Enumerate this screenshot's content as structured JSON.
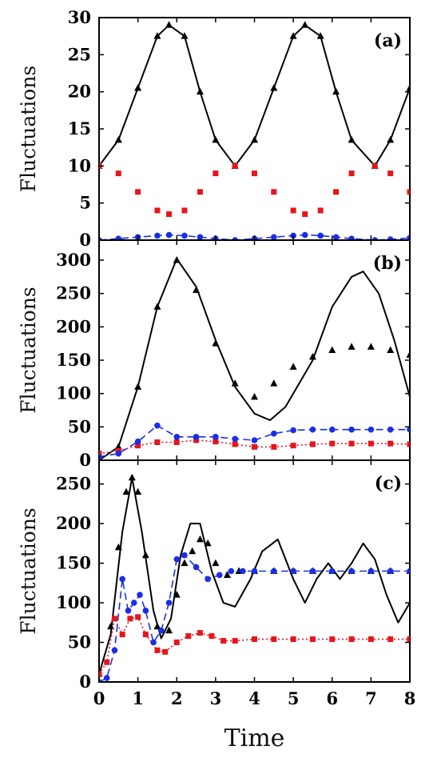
{
  "chart_data": [
    {
      "type": "line",
      "panel_label": "(a)",
      "ylabel": "Fluctuations",
      "xlim": [
        0,
        8
      ],
      "ylim": [
        0,
        30
      ],
      "yticks": [
        0,
        5,
        10,
        15,
        20,
        25,
        30
      ],
      "series": [
        {
          "color": "#000000",
          "style": "solid",
          "marker": "none",
          "x": [
            0,
            0.5,
            1,
            1.5,
            1.8,
            2.2,
            2.6,
            3,
            3.5,
            4,
            4.5,
            5,
            5.3,
            5.7,
            6.1,
            6.5,
            7.1,
            7.5,
            8
          ],
          "y": [
            10,
            13.5,
            20.5,
            27.5,
            29,
            27.5,
            20,
            13.5,
            10,
            13.5,
            20.5,
            27.5,
            29,
            27.5,
            20,
            13.5,
            10,
            13.5,
            20.5
          ]
        },
        {
          "color": "#000000",
          "style": "none",
          "marker": "triangle",
          "x": [
            0,
            0.5,
            1,
            1.5,
            1.8,
            2.2,
            2.6,
            3,
            3.5,
            4,
            4.5,
            5,
            5.3,
            5.7,
            6.1,
            6.5,
            7.1,
            7.5,
            8
          ],
          "y": [
            10,
            13.5,
            20.5,
            27.5,
            29,
            27.5,
            20,
            13.5,
            10,
            13.5,
            20.5,
            27.5,
            29,
            27.5,
            20,
            13.5,
            10,
            13.5,
            20.5
          ]
        },
        {
          "color": "#e8141b",
          "style": "none",
          "marker": "square",
          "x": [
            0,
            0.5,
            1,
            1.5,
            1.8,
            2.2,
            2.6,
            3,
            3.5,
            4,
            4.5,
            5,
            5.3,
            5.7,
            6.1,
            6.5,
            7.1,
            7.5,
            8
          ],
          "y": [
            10,
            9,
            6.5,
            4,
            3.5,
            4,
            6.5,
            9,
            10,
            9,
            6.5,
            4,
            3.5,
            4,
            6.5,
            9,
            10,
            9,
            6.5
          ]
        },
        {
          "color": "#1a2ee6",
          "style": "dashed",
          "marker": "circle",
          "x": [
            0,
            0.5,
            1,
            1.5,
            1.8,
            2.2,
            2.6,
            3,
            3.5,
            4,
            4.5,
            5,
            5.3,
            5.7,
            6.1,
            6.5,
            7.1,
            7.5,
            8
          ],
          "y": [
            0,
            0.2,
            0.4,
            0.6,
            0.7,
            0.6,
            0.4,
            0.2,
            0,
            0.2,
            0.4,
            0.6,
            0.7,
            0.6,
            0.4,
            0.2,
            0,
            0.1,
            0.3
          ]
        }
      ]
    },
    {
      "type": "line",
      "panel_label": "(b)",
      "ylabel": "Fluctuations",
      "xlim": [
        0,
        8
      ],
      "ylim": [
        0,
        330
      ],
      "yticks": [
        0,
        50,
        100,
        150,
        200,
        250,
        300
      ],
      "series": [
        {
          "color": "#000000",
          "style": "solid",
          "marker": "none",
          "x": [
            0,
            0.5,
            1,
            1.5,
            2,
            2.5,
            3,
            3.5,
            4,
            4.4,
            4.8,
            5.5,
            6,
            6.5,
            6.8,
            7.2,
            7.6,
            8
          ],
          "y": [
            0,
            20,
            110,
            230,
            302,
            260,
            180,
            110,
            70,
            60,
            80,
            150,
            230,
            275,
            283,
            250,
            180,
            95
          ]
        },
        {
          "color": "#000000",
          "style": "none",
          "marker": "triangle",
          "x": [
            0,
            0.5,
            1,
            1.5,
            2,
            2.5,
            3,
            3.5,
            4,
            4.5,
            5,
            5.5,
            6,
            6.5,
            7,
            7.5,
            8
          ],
          "y": [
            0,
            20,
            110,
            230,
            300,
            255,
            175,
            115,
            95,
            115,
            140,
            155,
            165,
            170,
            170,
            165,
            158
          ]
        },
        {
          "color": "#e8141b",
          "style": "dotted",
          "marker": "square",
          "x": [
            0,
            0.5,
            1,
            1.5,
            2,
            2.5,
            3,
            3.5,
            4,
            4.5,
            5,
            5.5,
            6,
            6.5,
            7,
            7.5,
            8
          ],
          "y": [
            10,
            14,
            22,
            27,
            27,
            30,
            28,
            24,
            20,
            20,
            22,
            24,
            25,
            25,
            25,
            25,
            24
          ]
        },
        {
          "color": "#1a2ee6",
          "style": "dashed",
          "marker": "circle",
          "x": [
            0,
            0.5,
            1,
            1.5,
            2,
            2.5,
            3,
            3.5,
            4,
            4.5,
            5,
            5.5,
            6,
            6.5,
            7,
            7.5,
            8
          ],
          "y": [
            5,
            10,
            28,
            52,
            35,
            35,
            35,
            32,
            30,
            40,
            45,
            46,
            46,
            46,
            46,
            46,
            46
          ]
        }
      ]
    },
    {
      "type": "line",
      "panel_label": "(c)",
      "xlabel": "Time",
      "ylabel": "Fluctuations",
      "xlim": [
        0,
        8
      ],
      "ylim": [
        0,
        280
      ],
      "yticks": [
        0,
        50,
        100,
        150,
        200,
        250
      ],
      "xticks": [
        0,
        1,
        2,
        3,
        4,
        5,
        6,
        7,
        8
      ],
      "series": [
        {
          "color": "#000000",
          "style": "solid",
          "marker": "none",
          "x": [
            0,
            0.3,
            0.6,
            0.85,
            1.1,
            1.4,
            1.6,
            1.85,
            2.1,
            2.35,
            2.6,
            2.9,
            3.2,
            3.5,
            3.9,
            4.2,
            4.6,
            5,
            5.3,
            5.6,
            5.9,
            6.2,
            6.5,
            6.8,
            7.1,
            7.4,
            7.7,
            8
          ],
          "y": [
            10,
            60,
            190,
            258,
            190,
            90,
            55,
            80,
            160,
            200,
            200,
            140,
            100,
            95,
            130,
            165,
            180,
            130,
            100,
            130,
            150,
            130,
            150,
            175,
            155,
            110,
            75,
            100
          ]
        },
        {
          "color": "#000000",
          "style": "none",
          "marker": "triangle",
          "x": [
            0,
            0.3,
            0.5,
            0.7,
            0.85,
            1,
            1.2,
            1.5,
            1.8,
            2,
            2.2,
            2.4,
            2.6,
            2.8,
            3,
            3.3,
            3.6,
            4,
            4.5,
            5,
            5.5,
            6,
            6.5,
            7,
            7.5,
            8
          ],
          "y": [
            10,
            70,
            170,
            240,
            258,
            240,
            160,
            70,
            65,
            110,
            150,
            165,
            180,
            175,
            150,
            135,
            140,
            140,
            140,
            140,
            140,
            140,
            140,
            140,
            140,
            140
          ]
        },
        {
          "color": "#e8141b",
          "style": "dotted",
          "marker": "square",
          "x": [
            0,
            0.2,
            0.4,
            0.6,
            0.8,
            1,
            1.2,
            1.5,
            1.7,
            2,
            2.3,
            2.6,
            2.9,
            3.2,
            3.5,
            4,
            4.5,
            5,
            5.5,
            6,
            6.5,
            7,
            7.5,
            8
          ],
          "y": [
            10,
            25,
            80,
            60,
            80,
            82,
            60,
            40,
            38,
            50,
            58,
            62,
            58,
            52,
            52,
            54,
            54,
            54,
            54,
            54,
            54,
            54,
            54,
            54
          ]
        },
        {
          "color": "#1a2ee6",
          "style": "dashed",
          "marker": "circle",
          "x": [
            0,
            0.2,
            0.4,
            0.6,
            0.75,
            0.9,
            1.05,
            1.2,
            1.4,
            1.6,
            1.8,
            2,
            2.2,
            2.5,
            2.8,
            3.1,
            3.4,
            3.7,
            4,
            4.5,
            5,
            5.5,
            6,
            6.5,
            7,
            7.5,
            8
          ],
          "y": [
            0,
            5,
            40,
            130,
            90,
            100,
            110,
            90,
            50,
            65,
            100,
            155,
            160,
            145,
            130,
            135,
            140,
            140,
            140,
            140,
            140,
            140,
            140,
            140,
            140,
            140,
            140
          ]
        }
      ]
    }
  ]
}
